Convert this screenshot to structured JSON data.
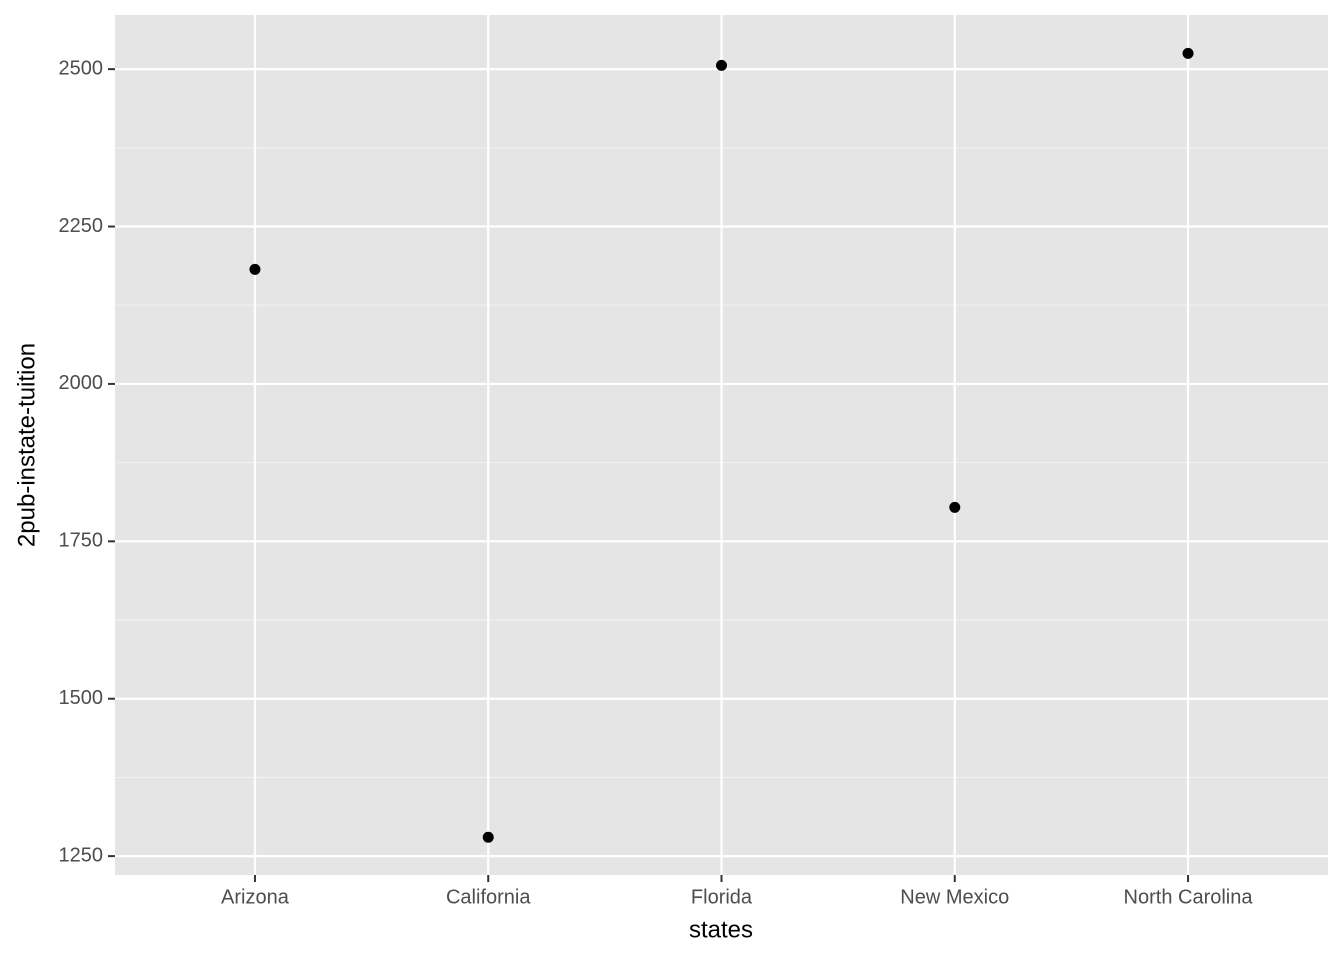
{
  "chart_data": {
    "type": "scatter",
    "x_label": "states",
    "y_label": "2pub-instate-tuition",
    "categories": [
      "Arizona",
      "California",
      "Florida",
      "New Mexico",
      "North Carolina"
    ],
    "values": [
      2182,
      1280,
      2506,
      1804,
      2525
    ],
    "color": "#000000",
    "ylim": [
      1220,
      2586
    ],
    "yticks": [
      1250,
      1500,
      1750,
      2000,
      2250,
      2500
    ],
    "grid": true
  }
}
